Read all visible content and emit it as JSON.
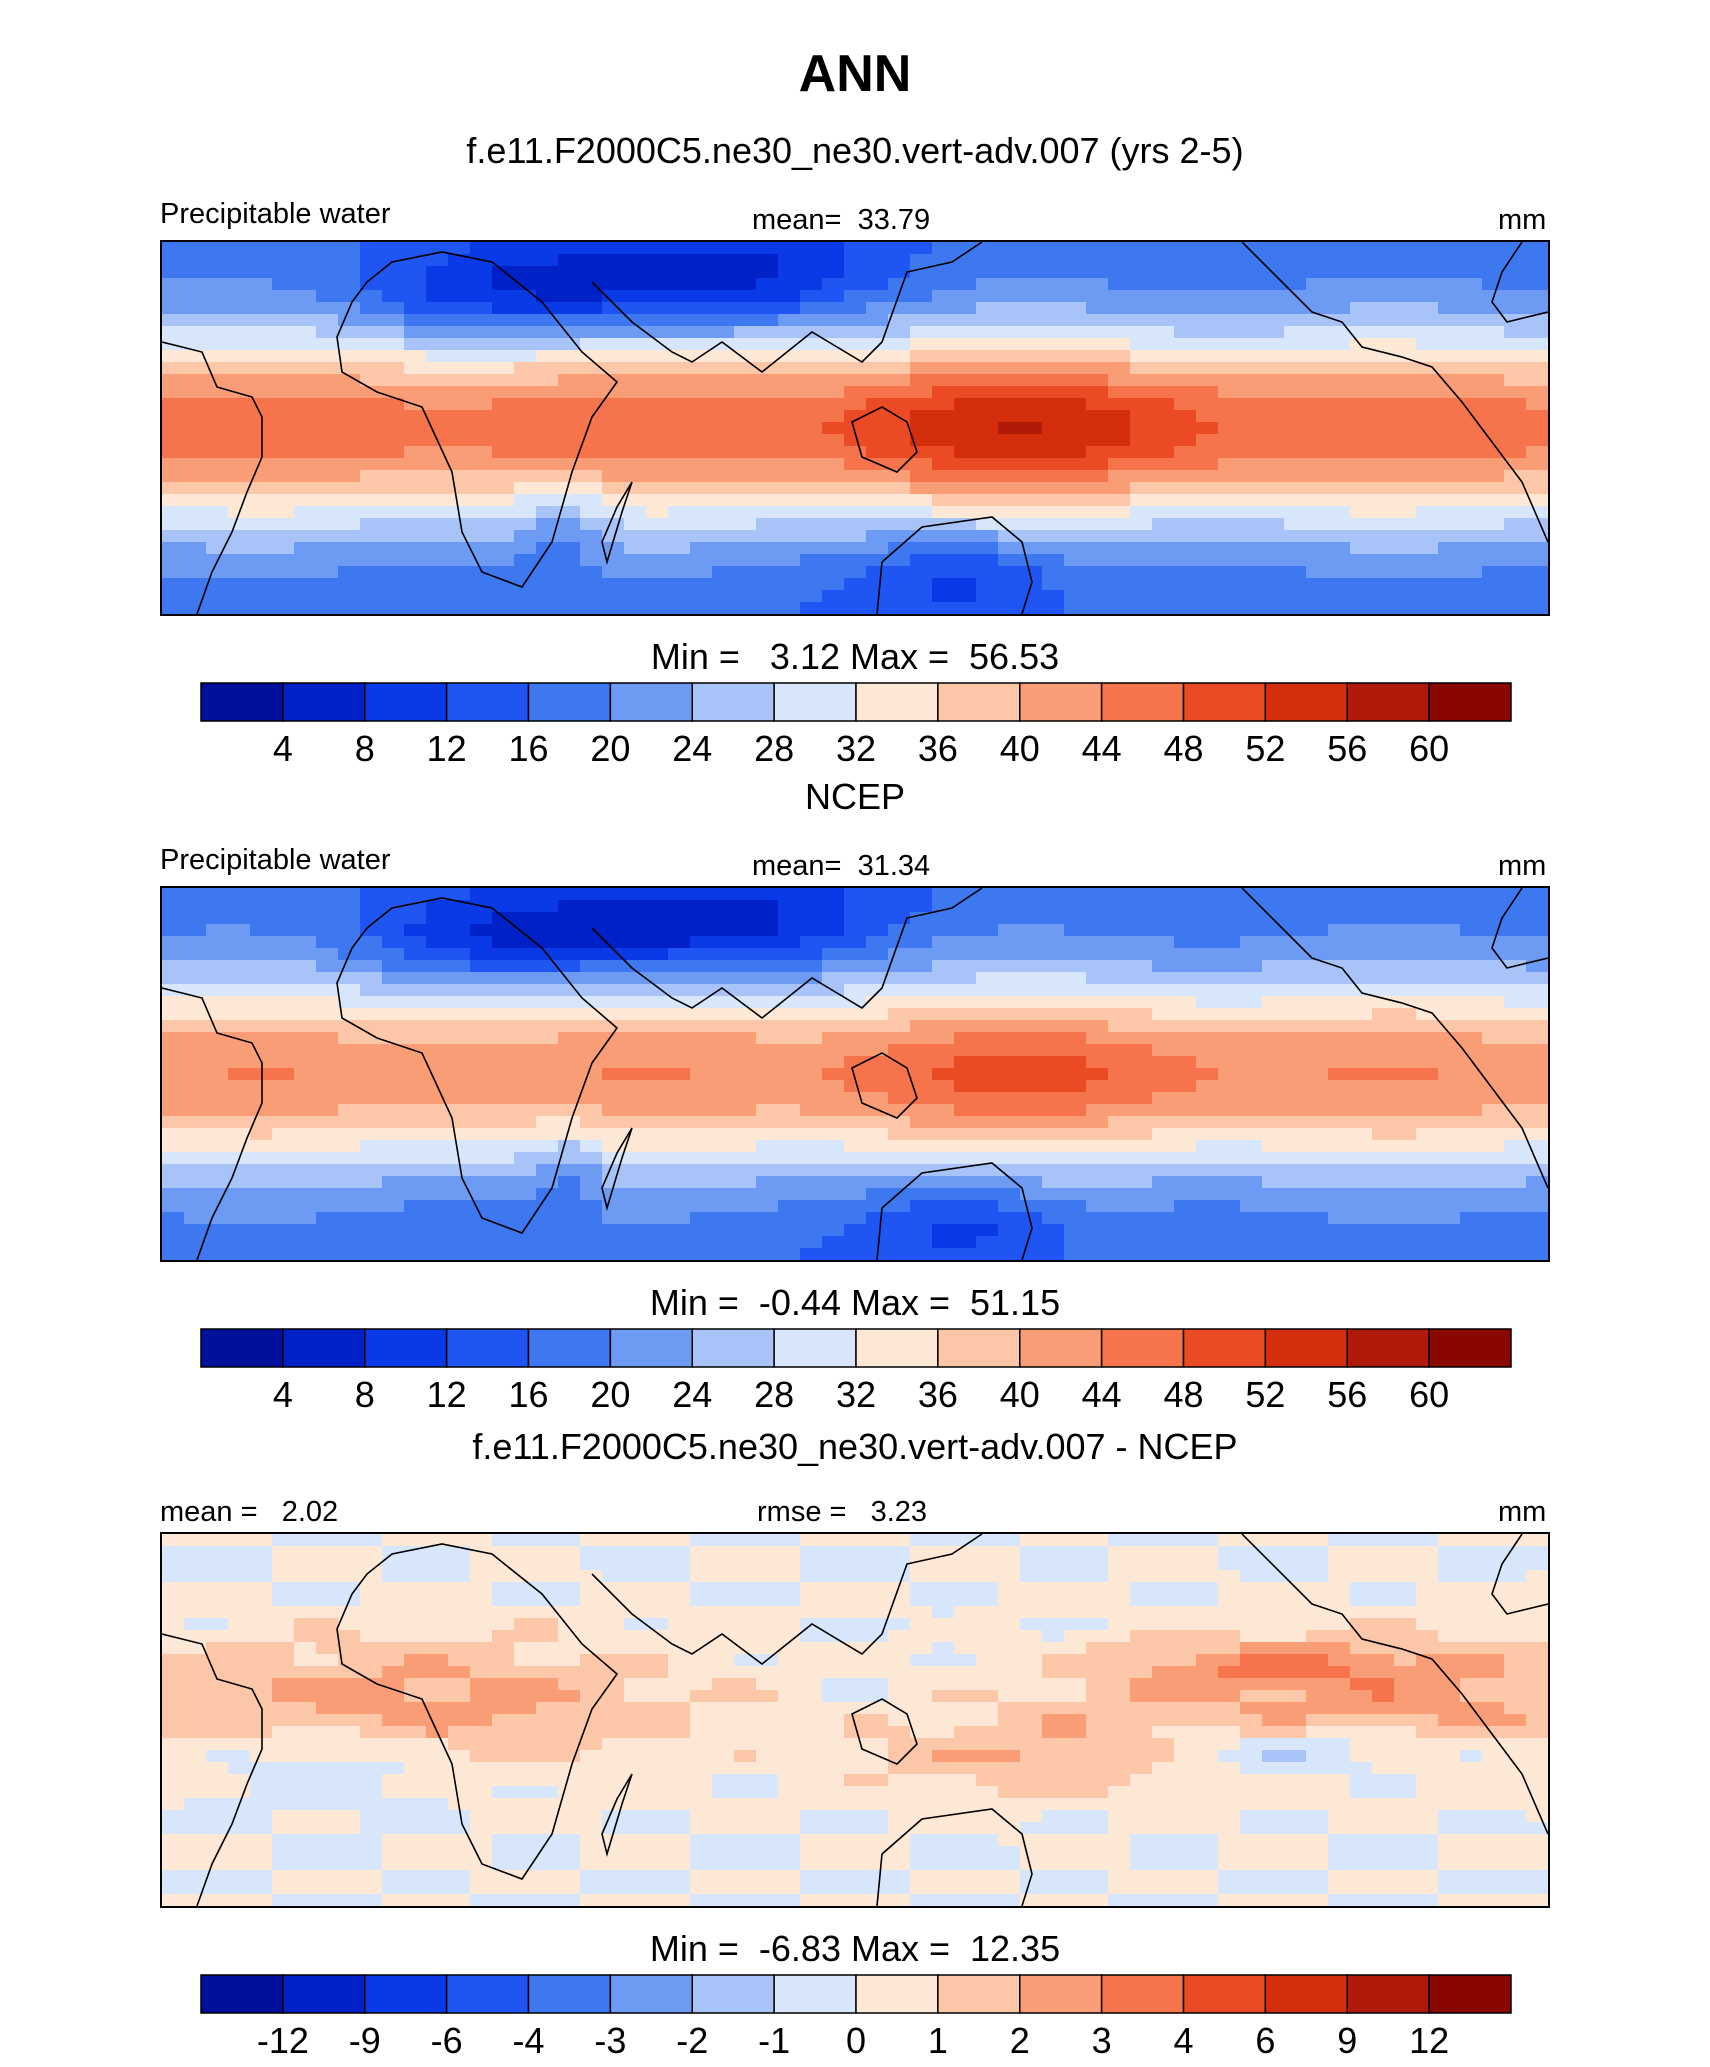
{
  "title": "ANN",
  "chart_data": [
    {
      "type": "heatmap",
      "title": "f.e11.F2000C5.ne30_ne30.vert-adv.007 (yrs 2-5)",
      "left_label": "Precipitable water",
      "center_label": "mean=  33.79",
      "right_label": "mm",
      "stats": "Min =   3.12 Max =  56.53",
      "colorbar_ticks": [
        "4",
        "8",
        "12",
        "16",
        "20",
        "24",
        "28",
        "32",
        "36",
        "40",
        "44",
        "48",
        "52",
        "56",
        "60"
      ],
      "mean": 33.79,
      "min": 3.12,
      "max": 56.53
    },
    {
      "type": "heatmap",
      "title": "NCEP",
      "left_label": "Precipitable water",
      "center_label": "mean=  31.34",
      "right_label": "mm",
      "stats": "Min =  -0.44 Max =  51.15",
      "colorbar_ticks": [
        "4",
        "8",
        "12",
        "16",
        "20",
        "24",
        "28",
        "32",
        "36",
        "40",
        "44",
        "48",
        "52",
        "56",
        "60"
      ],
      "mean": 31.34,
      "min": -0.44,
      "max": 51.15
    },
    {
      "type": "heatmap",
      "title": "f.e11.F2000C5.ne30_ne30.vert-adv.007 - NCEP",
      "left_label": "mean =   2.02",
      "center_label": "rmse =   3.23",
      "right_label": "mm",
      "stats": "Min =  -6.83 Max =  12.35",
      "colorbar_ticks": [
        "-12",
        "-9",
        "-6",
        "-4",
        "-3",
        "-2",
        "-1",
        "0",
        "1",
        "2",
        "3",
        "4",
        "6",
        "9",
        "12"
      ],
      "mean": 2.02,
      "rmse": 3.23,
      "min": -6.83,
      "max": 12.35
    }
  ],
  "colorbar_colors": [
    "#00109a",
    "#0020c8",
    "#0a3ae6",
    "#1f55f2",
    "#3d78f0",
    "#6d9bf4",
    "#a7c3f8",
    "#d7e6fb",
    "#fde8d6",
    "#fcc6a8",
    "#f99d76",
    "#f5744b",
    "#ea4a24",
    "#d42e0e",
    "#b01a08",
    "#880800"
  ]
}
